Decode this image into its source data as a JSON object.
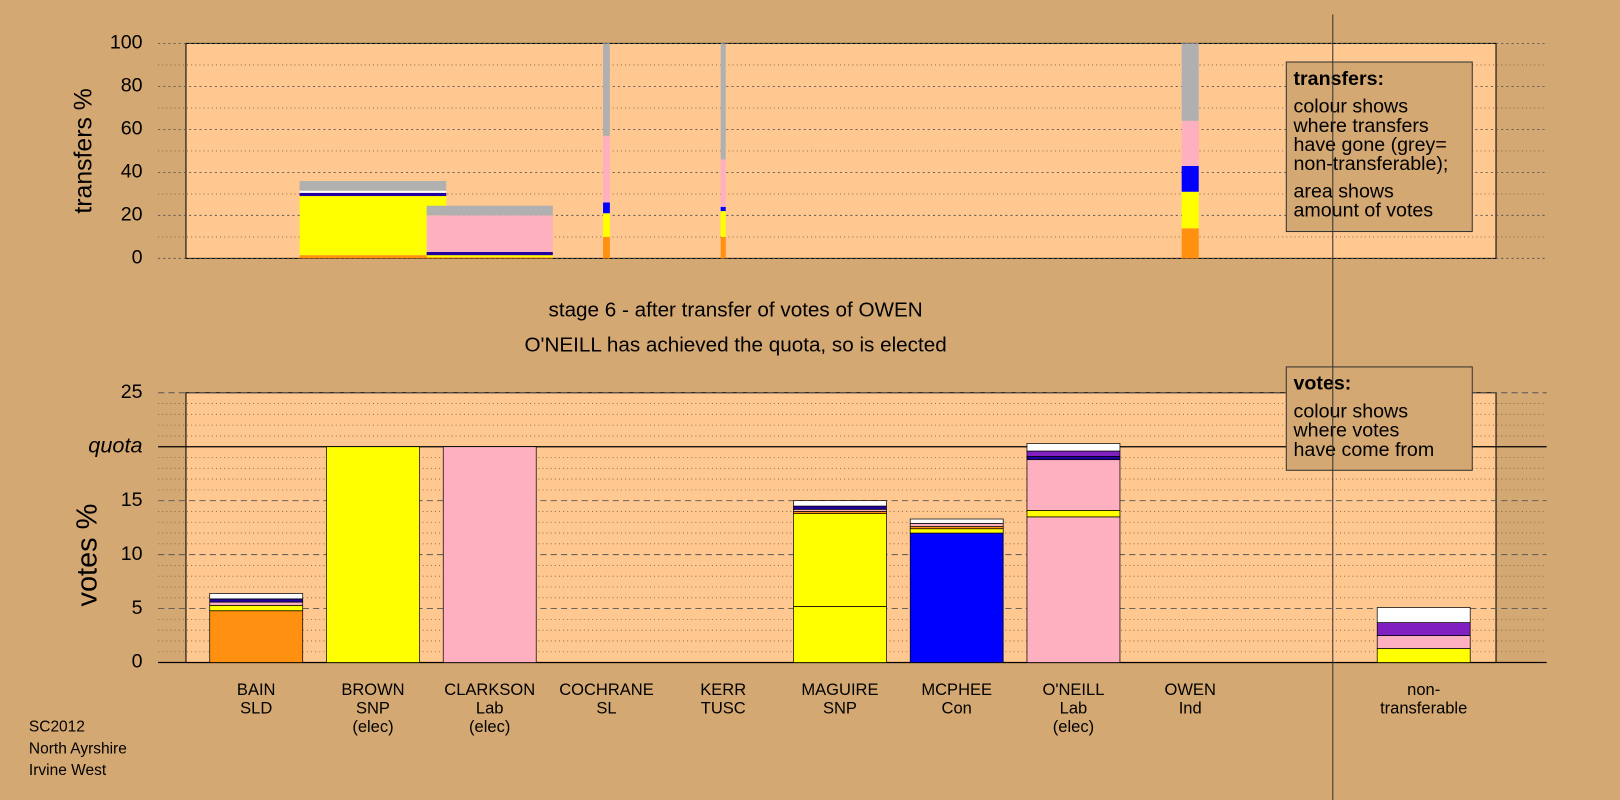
{
  "chart_data": [
    {
      "type": "bar",
      "ylabel": "transfers %",
      "ylim": [
        0,
        100
      ],
      "yticks": [
        0,
        20,
        40,
        60,
        80,
        100
      ],
      "minor_yticks": [
        10,
        30,
        50,
        70,
        90
      ],
      "note": {
        "title": "transfers:",
        "paragraphs": [
          [
            "colour shows",
            "where transfers",
            "have gone (grey=",
            "non-transferable);"
          ],
          [
            "area shows",
            "amount of votes"
          ]
        ]
      },
      "stacks": [
        null,
        {
          "votes": 4.3,
          "segments": [
            {
              "value": 1.5,
              "color": "#ff9010"
            },
            {
              "value": 27.5,
              "color": "#ffff00"
            },
            {
              "value": 1.5,
              "color": "#2000a0"
            },
            {
              "value": 1,
              "color": "#ffffff"
            },
            {
              "value": 4.5,
              "color": "#b0b0b0"
            }
          ]
        },
        {
          "votes": 3.7,
          "segments": [
            {
              "value": 0.5,
              "color": "#ff9010"
            },
            {
              "value": 1,
              "color": "#ffff00"
            },
            {
              "value": 1.5,
              "color": "#2000a0"
            },
            {
              "value": 17,
              "color": "#ffb0c0"
            },
            {
              "value": 4.5,
              "color": "#b0b0b0"
            }
          ]
        },
        {
          "votes": 0.2,
          "segments": [
            {
              "value": 10,
              "color": "#ff9010"
            },
            {
              "value": 11,
              "color": "#ffff00"
            },
            {
              "value": 5,
              "color": "#0000ff"
            },
            {
              "value": 31,
              "color": "#ffb0c0"
            },
            {
              "value": 43,
              "color": "#b0b0b0"
            }
          ]
        },
        {
          "votes": 0.15,
          "segments": [
            {
              "value": 10,
              "color": "#ff9010"
            },
            {
              "value": 12,
              "color": "#ffff00"
            },
            {
              "value": 2,
              "color": "#0000ff"
            },
            {
              "value": 22,
              "color": "#ffb0c0"
            },
            {
              "value": 54,
              "color": "#b0b0b0"
            }
          ]
        },
        null,
        null,
        null,
        {
          "votes": 0.5,
          "segments": [
            {
              "value": 14,
              "color": "#ff9010"
            },
            {
              "value": 17,
              "color": "#ffff00"
            },
            {
              "value": 12,
              "color": "#0000ff"
            },
            {
              "value": 21,
              "color": "#ffb0c0"
            },
            {
              "value": 36,
              "color": "#b0b0b0"
            }
          ]
        }
      ]
    },
    {
      "type": "bar",
      "ylabel": "votes %",
      "ylim": [
        0,
        25
      ],
      "yticks": [
        0,
        5,
        10,
        15,
        {
          "value": 20,
          "label": "quota"
        },
        25
      ],
      "minor_yticks": [
        1,
        2,
        3,
        4,
        6,
        7,
        8,
        9,
        11,
        12,
        13,
        14,
        16,
        17,
        18,
        19,
        21,
        22,
        23,
        24
      ],
      "note": {
        "title": "votes:",
        "paragraphs": [
          [
            "colour shows",
            "where votes",
            "have come from"
          ]
        ]
      },
      "categories": [
        [
          "BAIN",
          "SLD"
        ],
        [
          "BROWN",
          "SNP",
          "(elec)"
        ],
        [
          "CLARKSON",
          "Lab",
          "(elec)"
        ],
        [
          "COCHRANE",
          "SL"
        ],
        [
          "KERR",
          "TUSC"
        ],
        [
          "MAGUIRE",
          "SNP"
        ],
        [
          "MCPHEE",
          "Con"
        ],
        [
          "O'NEILL",
          "Lab",
          "(elec)"
        ],
        [
          "OWEN",
          "Ind"
        ],
        null,
        [
          "non-",
          "transferable"
        ]
      ],
      "stacks": [
        [
          {
            "value": 4.8,
            "color": "#ff9010"
          },
          {
            "value": 0.5,
            "color": "#ffff00"
          },
          {
            "value": 0.3,
            "color": "#ffb0c0"
          },
          {
            "value": 0.3,
            "color": "#2000a0"
          },
          {
            "value": 0.5,
            "color": "#ffffff"
          }
        ],
        [
          {
            "value": 20,
            "color": "#ffff00"
          }
        ],
        [
          {
            "value": 20,
            "color": "#ffb0c0"
          }
        ],
        [],
        [],
        [
          {
            "value": 5.2,
            "color": "#ffff00"
          },
          {
            "value": 8.6,
            "color": "#ffff00"
          },
          {
            "value": 0.2,
            "color": "#ff9010"
          },
          {
            "value": 0.2,
            "color": "#ffb0c0"
          },
          {
            "value": 0.3,
            "color": "#2000a0"
          },
          {
            "value": 0.5,
            "color": "#ffffff"
          }
        ],
        [
          {
            "value": 12,
            "color": "#0000ff"
          },
          {
            "value": 0.4,
            "color": "#ffff00"
          },
          {
            "value": 0.2,
            "color": "#ff9010"
          },
          {
            "value": 0.3,
            "color": "#ffb0c0"
          },
          {
            "value": 0.4,
            "color": "#ffffff"
          }
        ],
        [
          {
            "value": 13.5,
            "color": "#ffb0c0"
          },
          {
            "value": 0.6,
            "color": "#ffff00"
          },
          {
            "value": 4.7,
            "color": "#ffb0c0"
          },
          {
            "value": 0.3,
            "color": "#2000a0"
          },
          {
            "value": 0.5,
            "color": "#8020c0"
          },
          {
            "value": 0.7,
            "color": "#ffffff"
          }
        ],
        [],
        [],
        [
          {
            "value": 1.3,
            "color": "#ffff00"
          },
          {
            "value": 1.2,
            "color": "#ffb0c0"
          },
          {
            "value": 1.2,
            "color": "#8020c0"
          },
          {
            "value": 1.4,
            "color": "#ffffff"
          }
        ]
      ]
    }
  ],
  "stage": {
    "title": "stage 6 - after transfer of votes of OWEN",
    "subtitle": "O'NEILL has achieved the quota, so is elected"
  },
  "footer": [
    "SC2012",
    "North Ayrshire",
    "Irvine West"
  ]
}
